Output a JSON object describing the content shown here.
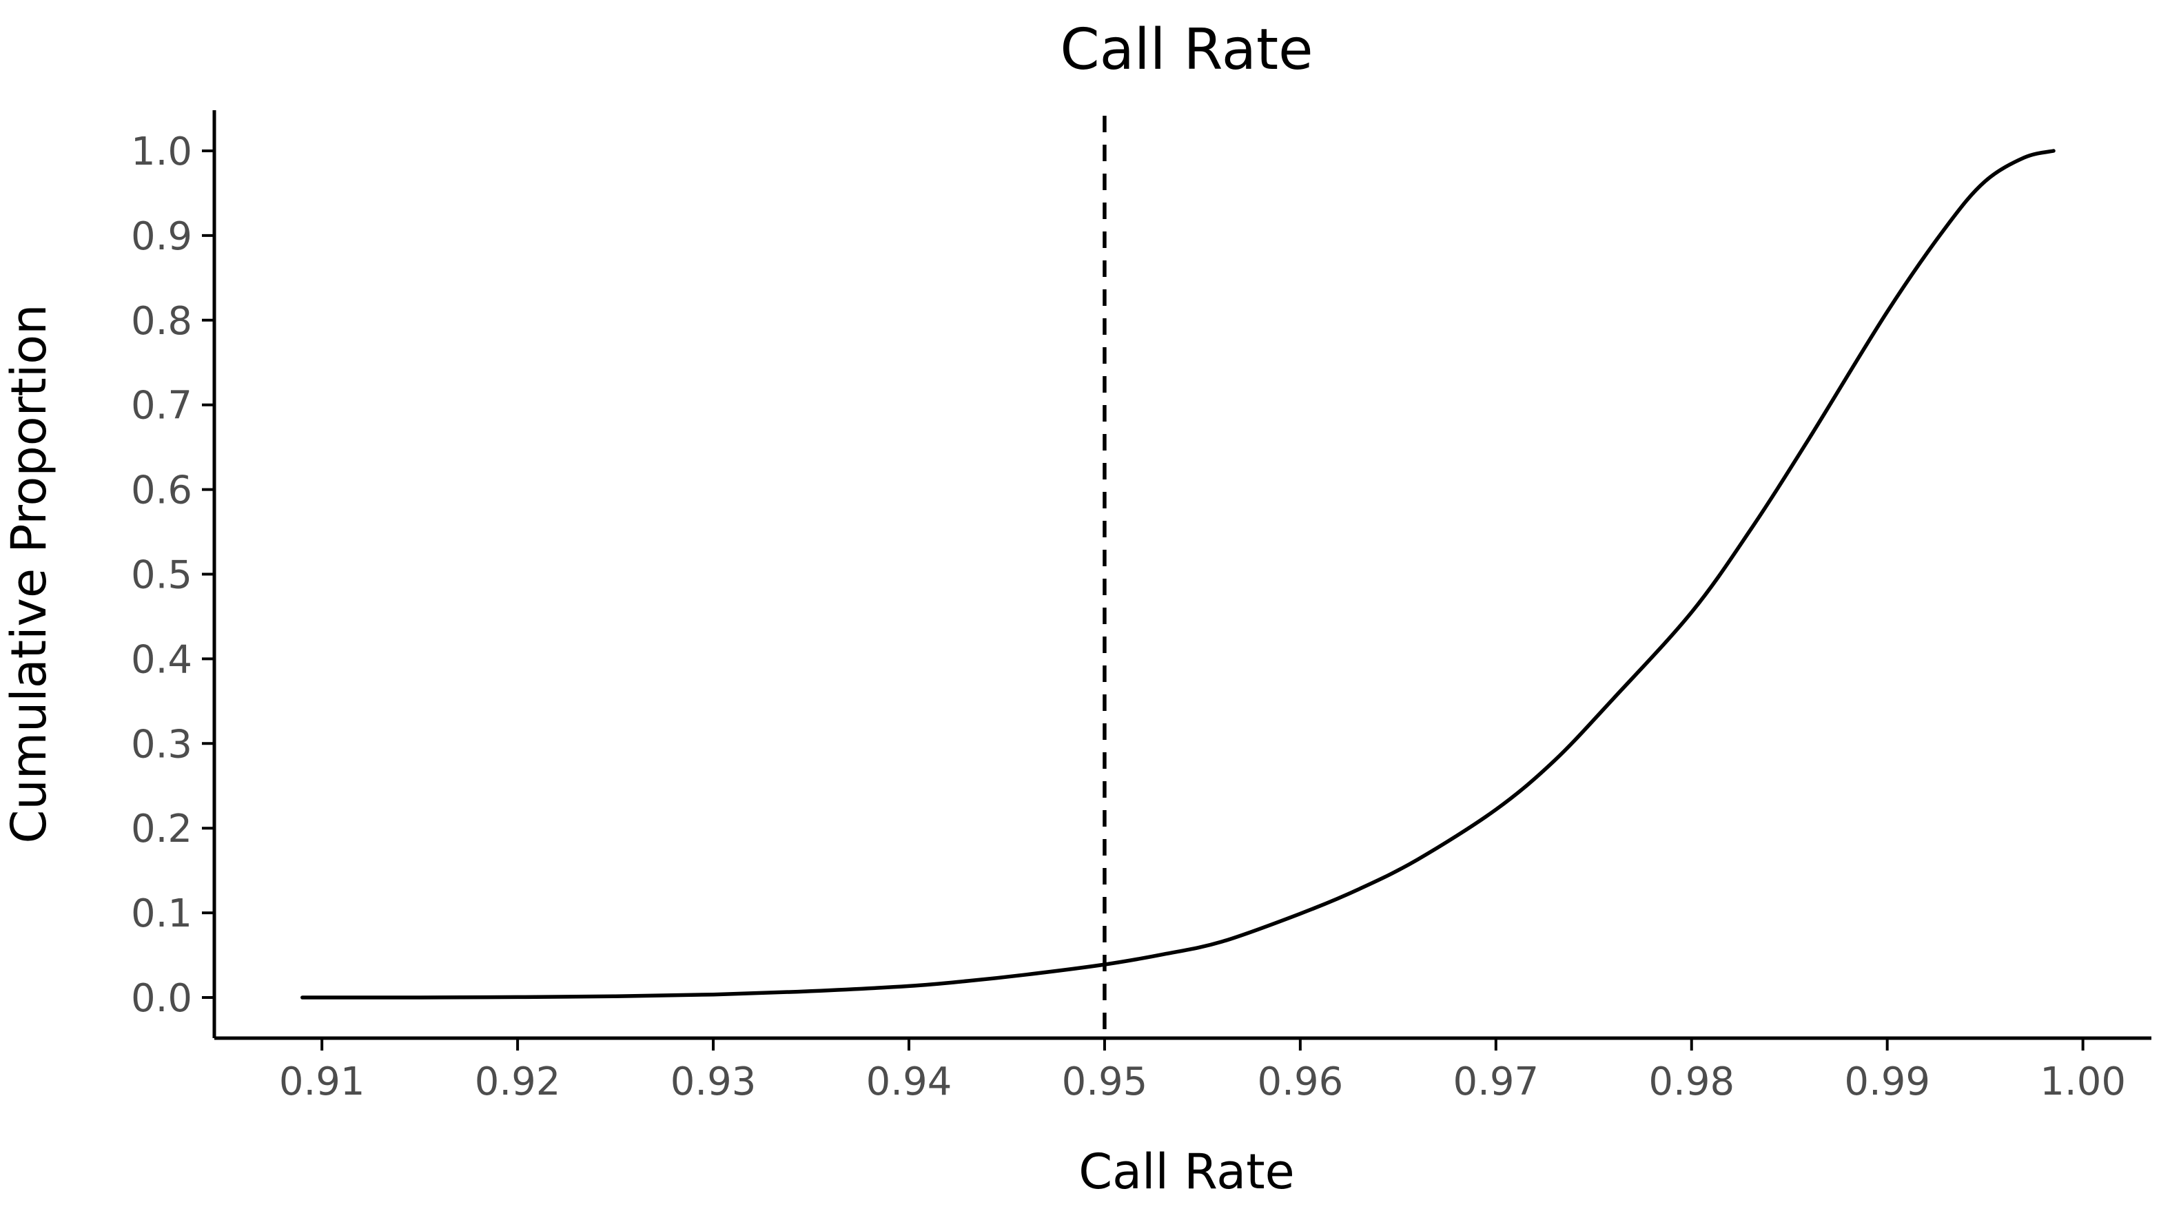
{
  "chart_data": {
    "type": "line",
    "title": "Call Rate",
    "xlabel": "Call Rate",
    "ylabel": "Cumulative Proportion",
    "xlim": [
      0.9045,
      1.0035
    ],
    "ylim": [
      -0.048,
      1.048
    ],
    "x_ticks": [
      0.91,
      0.92,
      0.93,
      0.94,
      0.95,
      0.96,
      0.97,
      0.98,
      0.99,
      1.0
    ],
    "x_tick_labels": [
      "0.91",
      "0.92",
      "0.93",
      "0.94",
      "0.95",
      "0.96",
      "0.97",
      "0.98",
      "0.99",
      "1.00"
    ],
    "y_ticks": [
      0.0,
      0.1,
      0.2,
      0.3,
      0.4,
      0.5,
      0.6,
      0.7,
      0.8,
      0.9,
      1.0
    ],
    "y_tick_labels": [
      "0.0",
      "0.1",
      "0.2",
      "0.3",
      "0.4",
      "0.5",
      "0.6",
      "0.7",
      "0.8",
      "0.9",
      "1.0"
    ],
    "grid": false,
    "legend": "none",
    "reference_line": {
      "orientation": "vertical",
      "x": 0.95,
      "style": "dashed"
    },
    "series": [
      {
        "x": [
          0.909,
          0.915,
          0.92,
          0.925,
          0.93,
          0.935,
          0.94,
          0.943,
          0.946,
          0.95,
          0.953,
          0.956,
          0.96,
          0.963,
          0.966,
          0.97,
          0.973,
          0.976,
          0.98,
          0.983,
          0.986,
          0.99,
          0.993,
          0.995,
          0.997,
          0.9985
        ],
        "y": [
          0.0,
          0.0,
          0.0005,
          0.0015,
          0.0035,
          0.0075,
          0.0135,
          0.0195,
          0.027,
          0.039,
          0.051,
          0.066,
          0.099,
          0.128,
          0.163,
          0.222,
          0.28,
          0.353,
          0.455,
          0.552,
          0.66,
          0.81,
          0.91,
          0.964,
          0.992,
          1.0
        ]
      }
    ]
  }
}
